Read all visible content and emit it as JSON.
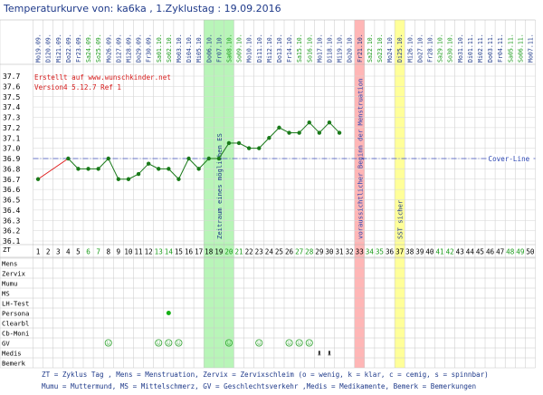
{
  "header": {
    "title": "Temperaturkurve von: ka6ka , 1.Zyklustag : 19.09.2016"
  },
  "info": {
    "line1": "Erstellt auf www.wunschkinder.net",
    "line2": "Version4 5.12.7 Ref 1"
  },
  "chart_data": {
    "type": "line",
    "title": "Temperaturkurve von: ka6ka , 1.Zyklustag : 19.09.2016",
    "ylim": [
      36.1,
      37.7
    ],
    "yticks": [
      "37.7",
      "37.6",
      "37.5",
      "37.4",
      "37.3",
      "37.2",
      "37.1",
      "37.0",
      "36.9",
      "36.8",
      "36.7",
      "36.6",
      "36.5",
      "36.4",
      "36.3",
      "36.2",
      "36.1"
    ],
    "dates": [
      "Mo19.09.",
      "Di20.09.",
      "Mi21.09.",
      "Do22.09.",
      "Fr23.09.",
      "Sa24.09.",
      "So25.09.",
      "Mo26.09.",
      "Di27.09.",
      "Mi28.09.",
      "Do29.09.",
      "Fr30.09.",
      "Sa01.10.",
      "So02.10.",
      "Mo03.10.",
      "Di04.10.",
      "Mi05.10.",
      "Do06.10.",
      "Fr07.10.",
      "Sa08.10.",
      "So09.10.",
      "Mo10.10.",
      "Di11.10.",
      "Mi12.10.",
      "Do13.10.",
      "Fr14.10.",
      "Sa15.10.",
      "So16.10.",
      "Mo17.10.",
      "Di18.10.",
      "Mi19.10.",
      "Do20.10.",
      "Fr21.10.",
      "Sa22.10.",
      "So23.10.",
      "Mo24.10.",
      "Di25.10.",
      "Mi26.10.",
      "Do27.10.",
      "Fr28.10.",
      "Sa29.10.",
      "So30.10.",
      "Mo31.10.",
      "Di01.11.",
      "Mi02.11.",
      "Do03.11.",
      "Fr04.11.",
      "Sa05.11.",
      "So06.11.",
      "Mo07.11."
    ],
    "cycle_days": [
      "1",
      "2",
      "3",
      "4",
      "5",
      "6",
      "7",
      "8",
      "9",
      "10",
      "11",
      "12",
      "13",
      "14",
      "15",
      "16",
      "17",
      "18",
      "19",
      "20",
      "21",
      "22",
      "23",
      "24",
      "25",
      "26",
      "27",
      "28",
      "29",
      "30",
      "31",
      "32",
      "33",
      "34",
      "35",
      "36",
      "37",
      "38",
      "39",
      "40",
      "41",
      "42",
      "43",
      "44",
      "45",
      "46",
      "47",
      "48",
      "49",
      "50"
    ],
    "weekend_days": [
      6,
      7,
      13,
      14,
      20,
      21,
      27,
      28,
      34,
      35,
      41,
      42,
      48,
      49
    ],
    "temperatures": [
      {
        "day": 1,
        "value": 36.7
      },
      {
        "day": 4,
        "value": 36.9
      },
      {
        "day": 5,
        "value": 36.8
      },
      {
        "day": 6,
        "value": 36.8
      },
      {
        "day": 7,
        "value": 36.8
      },
      {
        "day": 8,
        "value": 36.9
      },
      {
        "day": 9,
        "value": 36.7
      },
      {
        "day": 10,
        "value": 36.7
      },
      {
        "day": 11,
        "value": 36.75
      },
      {
        "day": 12,
        "value": 36.85
      },
      {
        "day": 13,
        "value": 36.8
      },
      {
        "day": 14,
        "value": 36.8
      },
      {
        "day": 15,
        "value": 36.7
      },
      {
        "day": 16,
        "value": 36.9
      },
      {
        "day": 17,
        "value": 36.8
      },
      {
        "day": 18,
        "value": 36.9
      },
      {
        "day": 19,
        "value": 36.9
      },
      {
        "day": 20,
        "value": 37.05
      },
      {
        "day": 21,
        "value": 37.05
      },
      {
        "day": 22,
        "value": 37.0
      },
      {
        "day": 23,
        "value": 37.0
      },
      {
        "day": 24,
        "value": 37.1
      },
      {
        "day": 25,
        "value": 37.2
      },
      {
        "day": 26,
        "value": 37.15
      },
      {
        "day": 27,
        "value": 37.15
      },
      {
        "day": 28,
        "value": 37.25
      },
      {
        "day": 29,
        "value": 37.15
      },
      {
        "day": 30,
        "value": 37.25
      },
      {
        "day": 31,
        "value": 37.15
      }
    ],
    "cover_line": {
      "value": 36.9,
      "label": "Cover-Line"
    },
    "bands": [
      {
        "from": 18,
        "to": 20,
        "color": "#b8f5b8",
        "label": "Zeitraum eines möglichen ES"
      },
      {
        "from": 33,
        "to": 33,
        "color": "#ffb6b6",
        "label": "voraussichtlicher Beginn der Menstruation"
      },
      {
        "from": 37,
        "to": 37,
        "color": "#ffff99",
        "label": "SST sicher"
      }
    ],
    "row_labels": [
      "Mens",
      "Zervix",
      "Mumu",
      "MS",
      "LH-Test",
      "Persona",
      "Clearbl",
      "Cb-Moni",
      "GV",
      "Medis",
      "Bemerk"
    ],
    "persona_days": [
      14
    ],
    "gv_days": [
      8,
      13,
      14,
      15,
      20,
      23,
      26,
      27,
      28
    ],
    "medis_days": [
      29,
      30
    ],
    "colors": {
      "line": "#1a7a1a",
      "first_segment": "#e02020",
      "cover": "#4050c0",
      "weekend_text": "#1a9a1a"
    }
  },
  "legend": {
    "line1": "ZT = Zyklus Tag , Mens = Menstruation, Zervix = Zervixschleim (o = wenig, k = klar, c = cemig, s = spinnbar)",
    "line2": "Mumu = Muttermund, MS = Mittelschmerz, GV = Geschlechtsverkehr ,Medis = Medikamente, Bemerk = Bemerkungen"
  },
  "zt_label": "ZT"
}
